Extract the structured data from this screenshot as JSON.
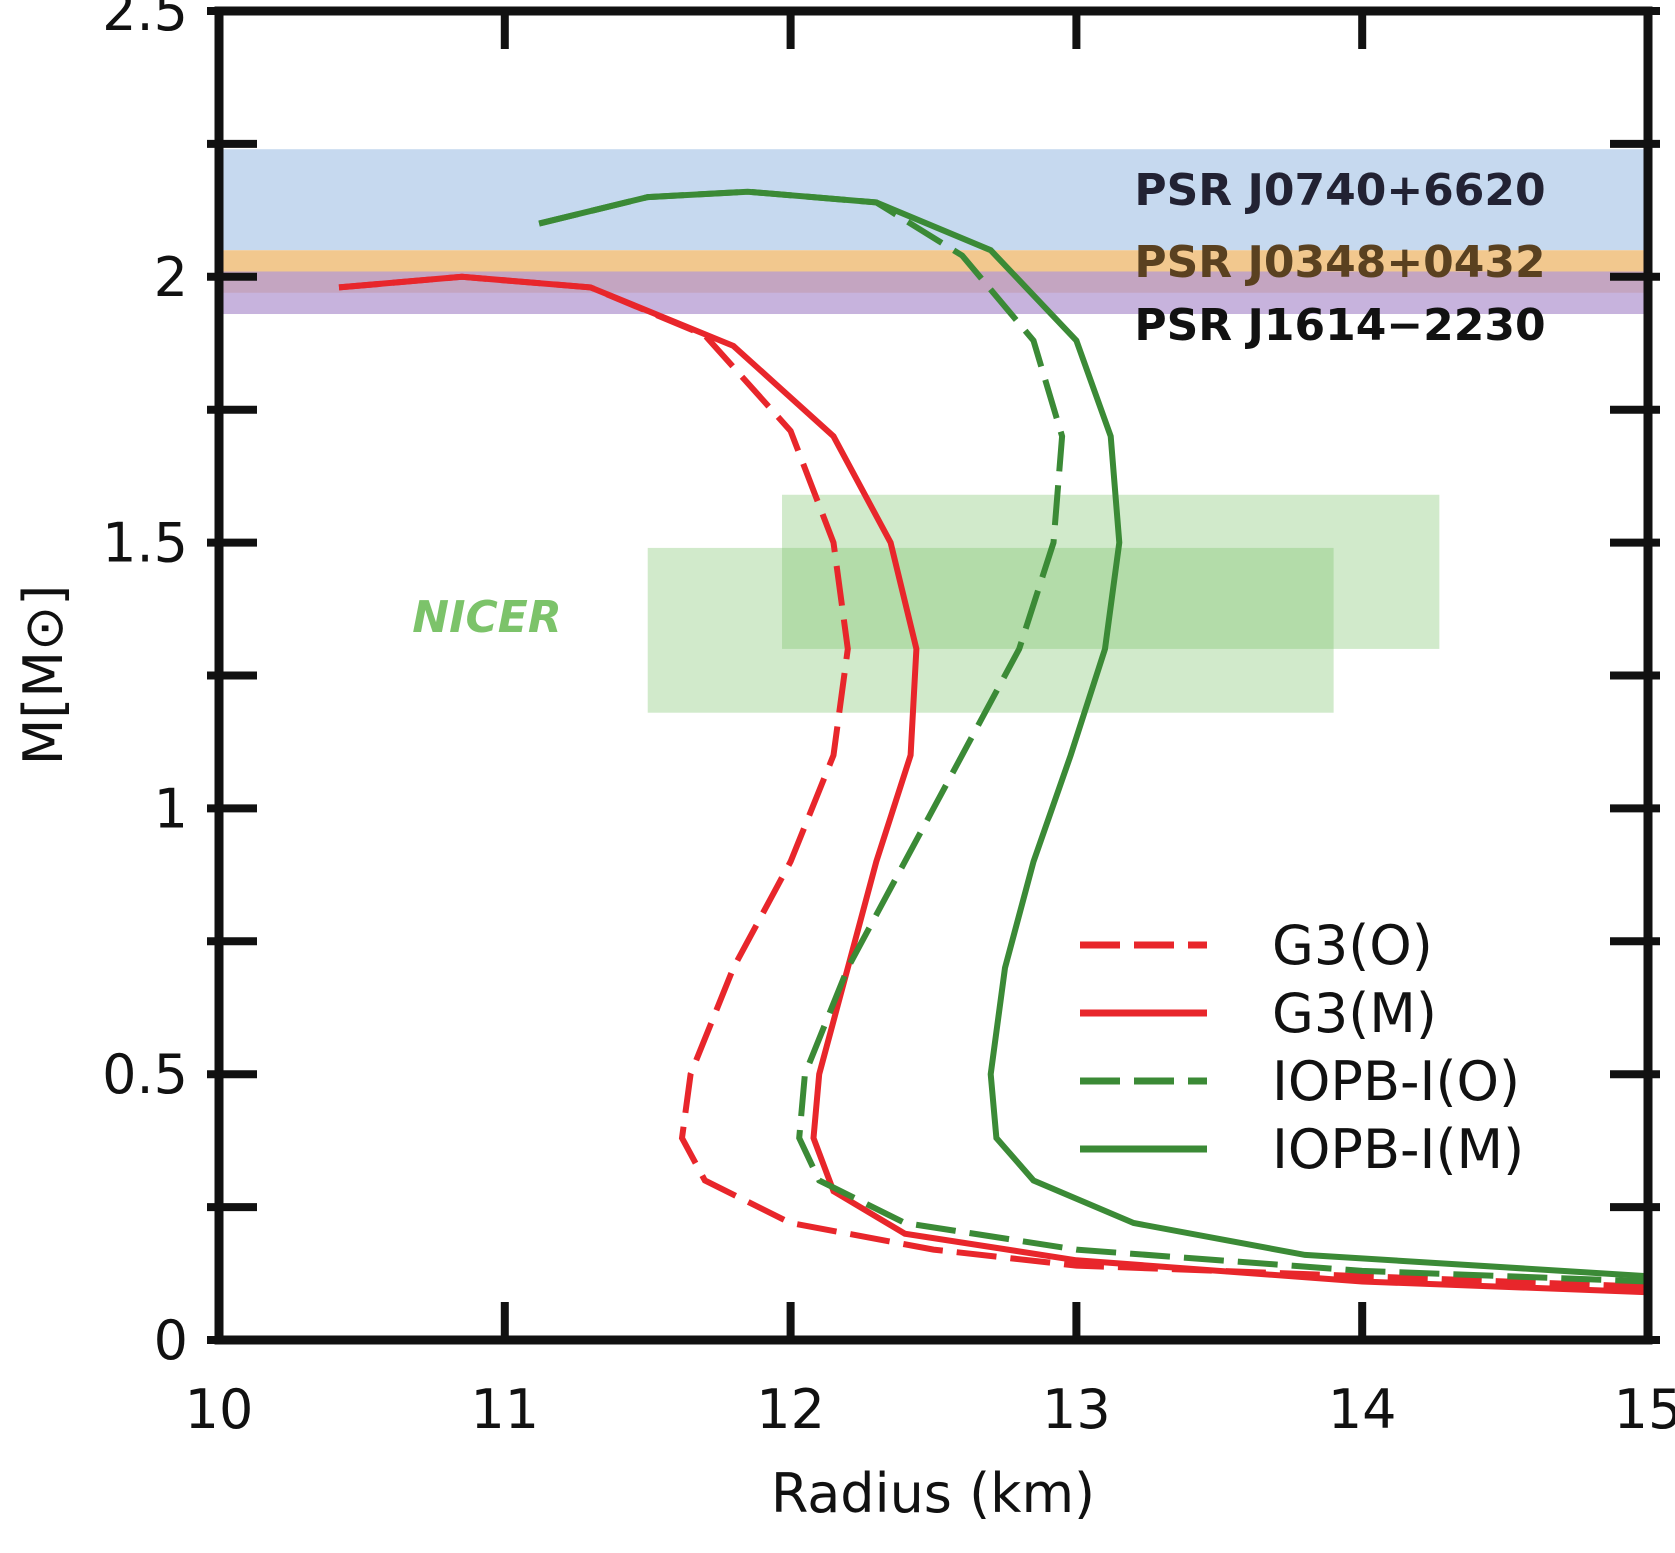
{
  "chart_data": {
    "type": "line",
    "x_label": "Radius (km)",
    "y_label": "M[M⊙]",
    "xlim": [
      10,
      15
    ],
    "ylim": [
      0,
      2.5
    ],
    "xticks": [
      10,
      11,
      12,
      13,
      14,
      15
    ],
    "yticks": [
      0,
      0.5,
      1,
      1.5,
      2,
      2.5
    ],
    "yminorticks": [
      0.25,
      0.75,
      1.25,
      1.75,
      2.25
    ],
    "legend": "lower right",
    "bands": [
      {
        "name": "PSR J0740+6620",
        "range": [
          2.05,
          2.24
        ],
        "color": "#c6d9ef",
        "text_color": "#222233"
      },
      {
        "name": "PSR J0348+0432",
        "range": [
          1.97,
          2.05
        ],
        "color": "#f2c88e",
        "text_color": "#5a4120"
      },
      {
        "name": "PSR J1614−2230",
        "range": [
          1.93,
          2.01
        ],
        "color": "#b49ad2",
        "text_color": "#111111"
      }
    ],
    "nicer": {
      "name": "NICER",
      "color": "#7cc36a",
      "boxes": [
        {
          "x": [
            11.5,
            13.9
          ],
          "y": [
            1.18,
            1.49
          ]
        },
        {
          "x": [
            11.97,
            14.27
          ],
          "y": [
            1.3,
            1.59
          ]
        }
      ]
    },
    "series": [
      {
        "name": "G3(O)",
        "color": "#e8262b",
        "dashed": true,
        "x": [
          10.42,
          10.85,
          11.3,
          11.7,
          12.0,
          12.15,
          12.2,
          12.15,
          12.0,
          11.8,
          11.65,
          11.62,
          11.7,
          12.0,
          12.5,
          13,
          14,
          15
        ],
        "values": [
          1.98,
          2.0,
          1.98,
          1.89,
          1.71,
          1.5,
          1.3,
          1.1,
          0.9,
          0.7,
          0.5,
          0.38,
          0.3,
          0.22,
          0.17,
          0.14,
          0.12,
          0.1
        ]
      },
      {
        "name": "G3(M)",
        "color": "#e8262b",
        "dashed": false,
        "x": [
          10.42,
          10.85,
          11.3,
          11.8,
          12.15,
          12.35,
          12.44,
          12.42,
          12.3,
          12.2,
          12.1,
          12.08,
          12.15,
          12.4,
          13,
          14,
          15
        ],
        "values": [
          1.98,
          2.0,
          1.98,
          1.87,
          1.7,
          1.5,
          1.3,
          1.1,
          0.9,
          0.7,
          0.5,
          0.38,
          0.28,
          0.2,
          0.15,
          0.11,
          0.09
        ]
      },
      {
        "name": "IOPB-I(O)",
        "color": "#3b8a36",
        "dashed": true,
        "x": [
          11.12,
          11.5,
          11.85,
          12.3,
          12.6,
          12.85,
          12.95,
          12.92,
          12.8,
          12.6,
          12.4,
          12.2,
          12.05,
          12.03,
          12.1,
          12.4,
          13,
          14,
          15
        ],
        "values": [
          2.1,
          2.15,
          2.16,
          2.14,
          2.04,
          1.88,
          1.7,
          1.5,
          1.3,
          1.1,
          0.9,
          0.7,
          0.5,
          0.38,
          0.3,
          0.22,
          0.17,
          0.13,
          0.11
        ]
      },
      {
        "name": "IOPB-I(M)",
        "color": "#3b8a36",
        "dashed": false,
        "x": [
          11.12,
          11.5,
          11.85,
          12.3,
          12.7,
          13.0,
          13.12,
          13.15,
          13.1,
          12.98,
          12.85,
          12.75,
          12.7,
          12.72,
          12.85,
          13.2,
          13.8,
          15
        ],
        "values": [
          2.1,
          2.15,
          2.16,
          2.14,
          2.05,
          1.88,
          1.7,
          1.5,
          1.3,
          1.1,
          0.9,
          0.7,
          0.5,
          0.38,
          0.3,
          0.22,
          0.16,
          0.12
        ]
      }
    ]
  }
}
